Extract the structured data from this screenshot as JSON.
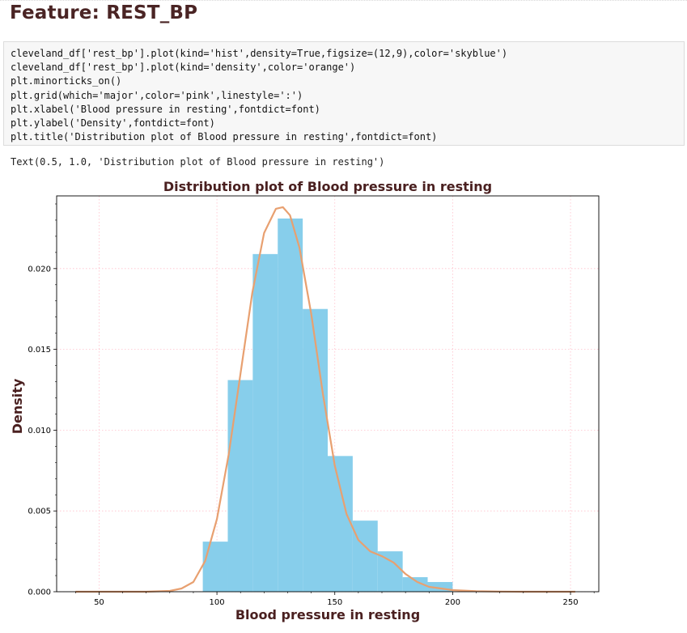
{
  "heading": "Feature: REST_BP",
  "code_lines": [
    "cleveland_df['rest_bp'].plot(kind='hist',density=True,figsize=(12,9),color='skyblue')",
    "cleveland_df['rest_bp'].plot(kind='density',color='orange')",
    "plt.minorticks_on()",
    "plt.grid(which='major',color='pink',linestyle=':')",
    "plt.xlabel('Blood pressure in resting',fontdict=font)",
    "plt.ylabel('Density',fontdict=font)",
    "plt.title('Distribution plot of Blood pressure in resting',fontdict=font)"
  ],
  "output_text": "Text(0.5, 1.0, 'Distribution plot of Blood pressure in resting')",
  "chart_data": {
    "type": "bar",
    "title": "Distribution plot of Blood pressure in resting",
    "xlabel": "Blood pressure in resting",
    "ylabel": "Density",
    "xlim": [
      32.0,
      262.0
    ],
    "ylim": [
      0.0,
      0.0245
    ],
    "xticks": [
      50,
      100,
      150,
      200,
      250
    ],
    "yticks": [
      0.0,
      0.005,
      0.01,
      0.015,
      0.02
    ],
    "ytick_labels": [
      "0.000",
      "0.005",
      "0.010",
      "0.015",
      "0.020"
    ],
    "grid": true,
    "series": [
      {
        "kind": "hist",
        "color": "#87ceeb",
        "bins": [
          {
            "x0": 94.0,
            "x1": 104.6,
            "density": 0.0031
          },
          {
            "x0": 104.6,
            "x1": 115.2,
            "density": 0.0131
          },
          {
            "x0": 115.2,
            "x1": 125.8,
            "density": 0.0209
          },
          {
            "x0": 125.8,
            "x1": 136.4,
            "density": 0.0231
          },
          {
            "x0": 136.4,
            "x1": 147.0,
            "density": 0.0175
          },
          {
            "x0": 147.0,
            "x1": 157.6,
            "density": 0.0084
          },
          {
            "x0": 157.6,
            "x1": 168.2,
            "density": 0.0044
          },
          {
            "x0": 168.2,
            "x1": 178.8,
            "density": 0.0025
          },
          {
            "x0": 178.8,
            "x1": 189.4,
            "density": 0.0009
          },
          {
            "x0": 189.4,
            "x1": 200.0,
            "density": 0.0006
          }
        ]
      },
      {
        "kind": "density",
        "color": "#e8a070",
        "x": [
          40,
          60,
          70,
          80,
          85,
          90,
          95,
          100,
          105,
          110,
          115,
          120,
          125,
          128,
          131,
          135,
          140,
          145,
          150,
          155,
          160,
          165,
          170,
          175,
          180,
          185,
          190,
          200,
          210,
          220,
          230,
          240,
          252
        ],
        "y": [
          0.0,
          0.0,
          0.0,
          5e-05,
          0.0002,
          0.0006,
          0.0019,
          0.0045,
          0.0085,
          0.0135,
          0.0185,
          0.0222,
          0.0237,
          0.0238,
          0.0233,
          0.0213,
          0.0172,
          0.0122,
          0.0078,
          0.0048,
          0.0032,
          0.0025,
          0.0022,
          0.0018,
          0.0011,
          0.0006,
          0.0003,
          0.0001,
          3e-05,
          1e-05,
          0.0,
          0.0,
          0.0
        ]
      }
    ]
  }
}
